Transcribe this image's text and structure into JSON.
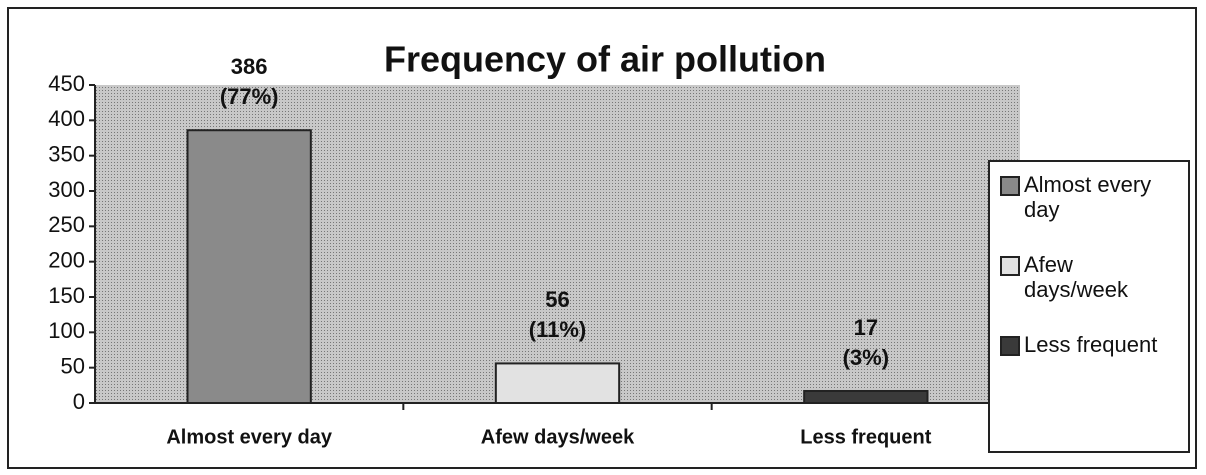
{
  "chart_data": {
    "type": "bar",
    "title": "Frequency of air pollution",
    "categories": [
      "Almost every day",
      "Afew days/week",
      "Less frequent"
    ],
    "values": [
      386,
      56,
      17
    ],
    "percent_labels": [
      "(77%)",
      "(11%)",
      "(3%)"
    ],
    "colors": [
      "#8a8a8a",
      "#e2e2e2",
      "#3a3a3a"
    ],
    "ylim": [
      0,
      450
    ],
    "yticks": [
      0,
      50,
      100,
      150,
      200,
      250,
      300,
      350,
      400,
      450
    ],
    "legend": "right"
  }
}
